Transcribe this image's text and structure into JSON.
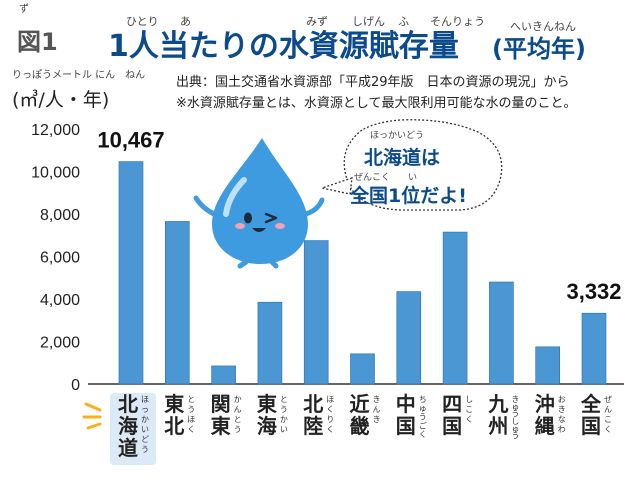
{
  "header": {
    "figure_label": "図1",
    "title": "1人当たりの水資源賦存量",
    "title_paren": "(平均年)",
    "title_ruby": [
      {
        "text": "ひとり",
        "over": "人"
      },
      {
        "text": "あ",
        "over": "当"
      },
      {
        "text": "みず",
        "over": "水"
      },
      {
        "text": "しげん",
        "over": "資源"
      },
      {
        "text": "ふ",
        "over": "賦"
      },
      {
        "text": "そんりょう",
        "over": "存量"
      },
      {
        "text": "へいきんねん",
        "over": "平均年"
      }
    ],
    "figure_label_ruby": "ず"
  },
  "unit": {
    "ruby": "りっぽうメートル にん　ねん",
    "label": "(㎥/人・年)"
  },
  "source": {
    "line1": "出典：国土交通省水資源部「平成29年版　日本の資源の現況」から",
    "line2": "※水資源賦存量とは、水資源として最大限利用可能な水の量のこと。"
  },
  "bubble": {
    "line1": "北海道は",
    "line2": "全国1位だよ!",
    "ruby1": "ほっかいどう",
    "ruby2": "ぜんこく　　い"
  },
  "colors": {
    "bar": "#4a97d4",
    "bar_highlight": "#4a97d4",
    "title": "#0b4a8b",
    "highlight_bg": "#dce9f7",
    "spark": "#f5b21c",
    "drop": "#3e9be0"
  },
  "chart_data": {
    "type": "bar",
    "categories": [
      "北海道",
      "東北",
      "関東",
      "東海",
      "北陸",
      "近畿",
      "中国",
      "四国",
      "九州",
      "沖縄",
      "全国"
    ],
    "category_ruby": [
      "ほっかいどう",
      "とうほく",
      "かんとう",
      "とうかい",
      "ほくりく",
      "きんき",
      "ちゅうごく",
      "しこく",
      "きゅうしゅう",
      "おきなわ",
      "ぜんこく"
    ],
    "values": [
      10467,
      7650,
      850,
      3850,
      6750,
      1420,
      4350,
      7150,
      4800,
      1750,
      3332
    ],
    "value_labels": [
      {
        "index": 0,
        "text": "10,467"
      },
      {
        "index": 10,
        "text": "3,332"
      }
    ],
    "ylim": [
      0,
      12000
    ],
    "yticks": [
      0,
      2000,
      4000,
      6000,
      8000,
      10000,
      12000
    ],
    "ytick_labels": [
      "0",
      "2,000",
      "4,000",
      "6,000",
      "8,000",
      "10,000",
      "12,000"
    ],
    "highlight_category": "北海道",
    "grid": false
  }
}
